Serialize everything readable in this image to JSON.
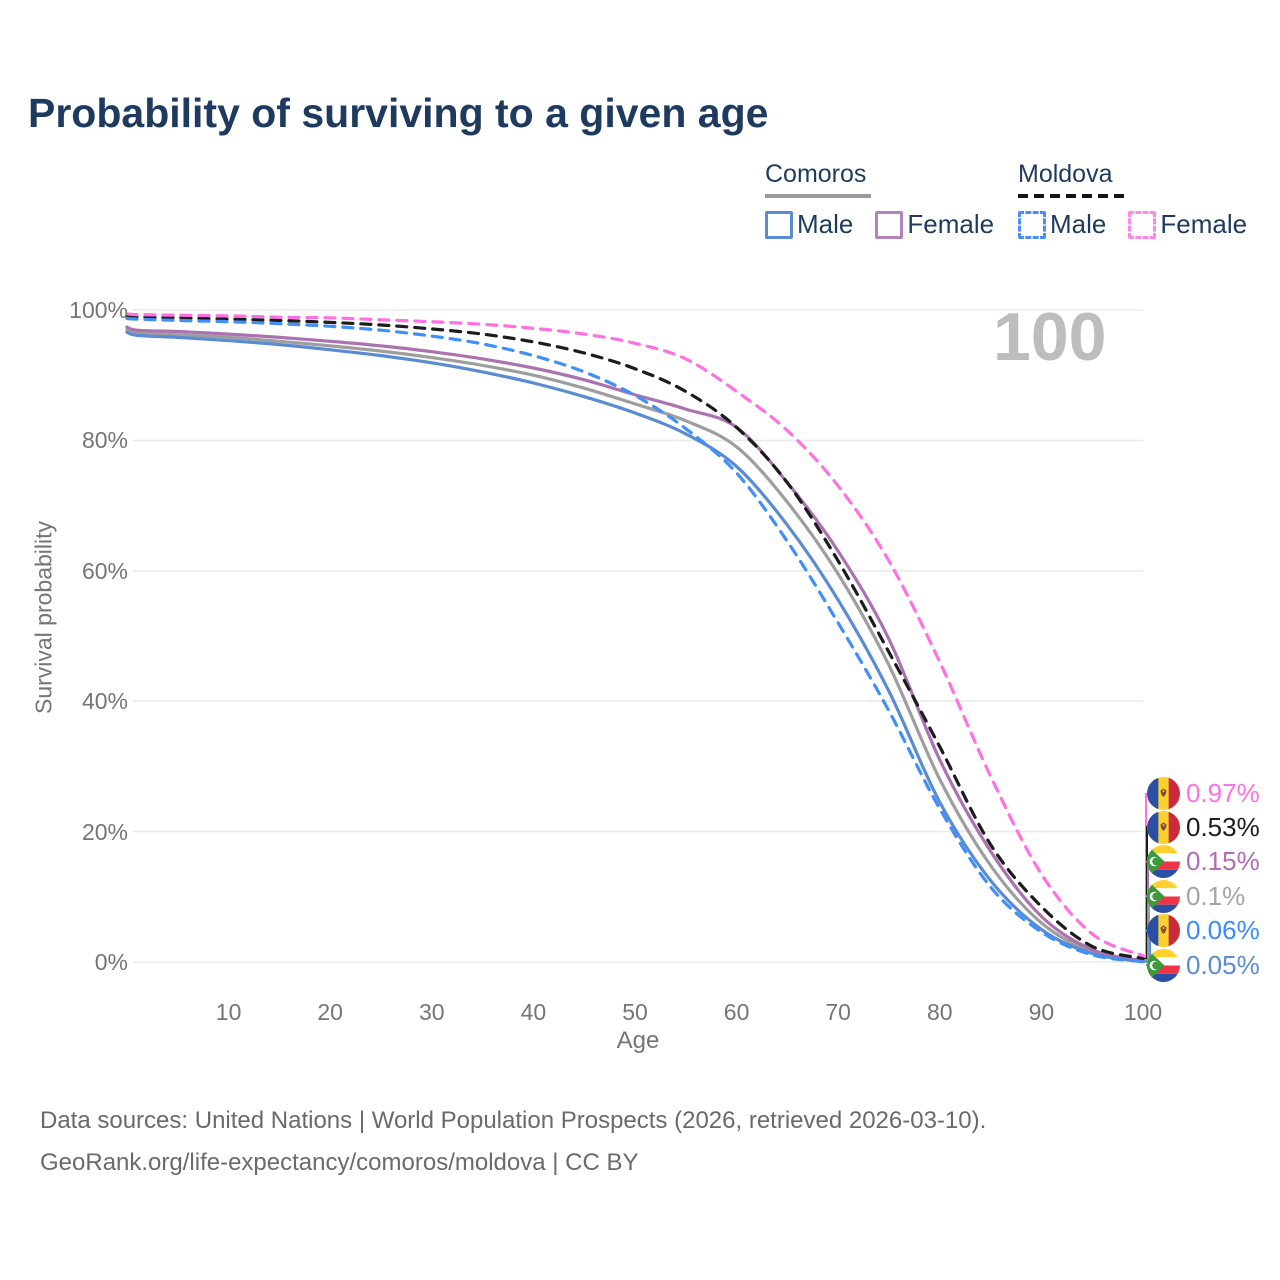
{
  "header": {
    "title": "Probability of surviving to a given age"
  },
  "legend": {
    "groups": [
      {
        "label": "Comoros",
        "underline_style": "solid",
        "underline_color": "#9a9a9a",
        "items": [
          {
            "label": "Male",
            "color": "#5b8bd2",
            "dashed": false
          },
          {
            "label": "Female",
            "color": "#b583ba",
            "dashed": false
          }
        ]
      },
      {
        "label": "Moldova",
        "underline_style": "dashed",
        "underline_color": "#141414",
        "items": [
          {
            "label": "Male",
            "color": "#4b8ef7",
            "dashed": true
          },
          {
            "label": "Female",
            "color": "#ff85e8",
            "dashed": true
          }
        ]
      }
    ]
  },
  "watermark": {
    "text": "100"
  },
  "chart_data": {
    "type": "line",
    "title": "Probability of surviving to a given age",
    "xlabel": "Age",
    "ylabel": "Survival probability",
    "xlim": [
      0,
      100
    ],
    "ylim": [
      0,
      100
    ],
    "grid": "horizontal",
    "legend_position": "top-right",
    "y_ticks": [
      {
        "v": 0,
        "label": "0%"
      },
      {
        "v": 20,
        "label": "20%"
      },
      {
        "v": 40,
        "label": "40%"
      },
      {
        "v": 60,
        "label": "60%"
      },
      {
        "v": 80,
        "label": "80%"
      },
      {
        "v": 100,
        "label": "100%"
      }
    ],
    "x_ticks": [
      {
        "v": 10,
        "label": "10"
      },
      {
        "v": 20,
        "label": "20"
      },
      {
        "v": 30,
        "label": "30"
      },
      {
        "v": 40,
        "label": "40"
      },
      {
        "v": 50,
        "label": "50"
      },
      {
        "v": 60,
        "label": "60"
      },
      {
        "v": 70,
        "label": "70"
      },
      {
        "v": 80,
        "label": "80"
      },
      {
        "v": 90,
        "label": "90"
      },
      {
        "v": 100,
        "label": "100"
      }
    ],
    "x": [
      0,
      1,
      5,
      10,
      15,
      20,
      25,
      30,
      35,
      40,
      45,
      50,
      55,
      60,
      65,
      70,
      75,
      80,
      85,
      90,
      95,
      100
    ],
    "series": [
      {
        "id": "comoros-all",
        "name": "Comoros All sexes",
        "country": "Comoros",
        "sex": "All",
        "style": "solid",
        "color": "#9e9e9e",
        "values": [
          97.0,
          96.5,
          96.2,
          95.8,
          95.2,
          94.5,
          93.7,
          92.7,
          91.5,
          90.0,
          88.0,
          85.6,
          83.0,
          79.0,
          70.5,
          59.5,
          45.5,
          28.0,
          14.8,
          6.0,
          1.6,
          0.1
        ]
      },
      {
        "id": "comoros-female",
        "name": "Comoros Female",
        "country": "Comoros",
        "sex": "Female",
        "style": "solid",
        "color": "#ab72b0",
        "values": [
          97.4,
          96.9,
          96.7,
          96.3,
          95.8,
          95.2,
          94.5,
          93.6,
          92.5,
          91.1,
          89.3,
          87.0,
          84.8,
          82.0,
          73.5,
          63.0,
          49.5,
          31.0,
          17.0,
          7.0,
          1.9,
          0.15
        ]
      },
      {
        "id": "comoros-male",
        "name": "Comoros Male",
        "country": "Comoros",
        "sex": "Male",
        "style": "solid",
        "color": "#5b8bd2",
        "values": [
          96.6,
          96.1,
          95.8,
          95.3,
          94.7,
          93.9,
          93.0,
          91.9,
          90.5,
          88.8,
          86.7,
          84.2,
          81.0,
          76.0,
          67.0,
          55.5,
          41.5,
          24.5,
          12.5,
          5.0,
          1.3,
          0.05
        ]
      },
      {
        "id": "moldova-all",
        "name": "Moldova All sexes",
        "country": "Moldova",
        "sex": "All",
        "style": "dashed",
        "color": "#1c1c1c",
        "values": [
          99.0,
          98.9,
          98.8,
          98.6,
          98.4,
          98.1,
          97.7,
          97.1,
          96.3,
          95.1,
          93.4,
          91.0,
          87.5,
          82.0,
          73.5,
          61.5,
          47.5,
          33.0,
          18.0,
          8.5,
          2.4,
          0.53
        ]
      },
      {
        "id": "moldova-male",
        "name": "Moldova Male",
        "country": "Moldova",
        "sex": "Male",
        "style": "dashed",
        "color": "#4190f7",
        "values": [
          98.7,
          98.6,
          98.4,
          98.2,
          97.9,
          97.5,
          96.9,
          96.0,
          94.8,
          93.0,
          90.5,
          86.9,
          81.8,
          75.0,
          64.5,
          52.0,
          38.5,
          23.5,
          11.5,
          4.6,
          1.1,
          0.06
        ]
      },
      {
        "id": "moldova-female",
        "name": "Moldova Female",
        "country": "Moldova",
        "sex": "Female",
        "style": "dashed",
        "color": "#ff70e2",
        "values": [
          99.4,
          99.3,
          99.2,
          99.1,
          98.9,
          98.8,
          98.5,
          98.2,
          97.8,
          97.2,
          96.3,
          94.9,
          92.5,
          87.5,
          81.5,
          73.0,
          61.5,
          46.0,
          28.5,
          13.5,
          4.3,
          0.97
        ]
      }
    ],
    "end_labels": [
      {
        "label": "0.97%",
        "color": "#ff70e2",
        "flag": "moldova",
        "series": "moldova-female"
      },
      {
        "label": "0.53%",
        "color": "#1c1c1c",
        "flag": "moldova",
        "series": "moldova-all"
      },
      {
        "label": "0.15%",
        "color": "#b06cb5",
        "flag": "comoros",
        "series": "comoros-female"
      },
      {
        "label": "0.1%",
        "color": "#a5a5a5",
        "flag": "comoros",
        "series": "comoros-all"
      },
      {
        "label": "0.06%",
        "color": "#3b8bff",
        "flag": "moldova",
        "series": "moldova-male"
      },
      {
        "label": "0.05%",
        "color": "#5b8bd2",
        "flag": "comoros",
        "series": "comoros-male"
      }
    ]
  },
  "footer": {
    "line1": "Data sources: United Nations | World Population Prospects (2026, retrieved 2026-03-10).",
    "line2": "GeoRank.org/life-expectancy/comoros/moldova | CC BY"
  }
}
